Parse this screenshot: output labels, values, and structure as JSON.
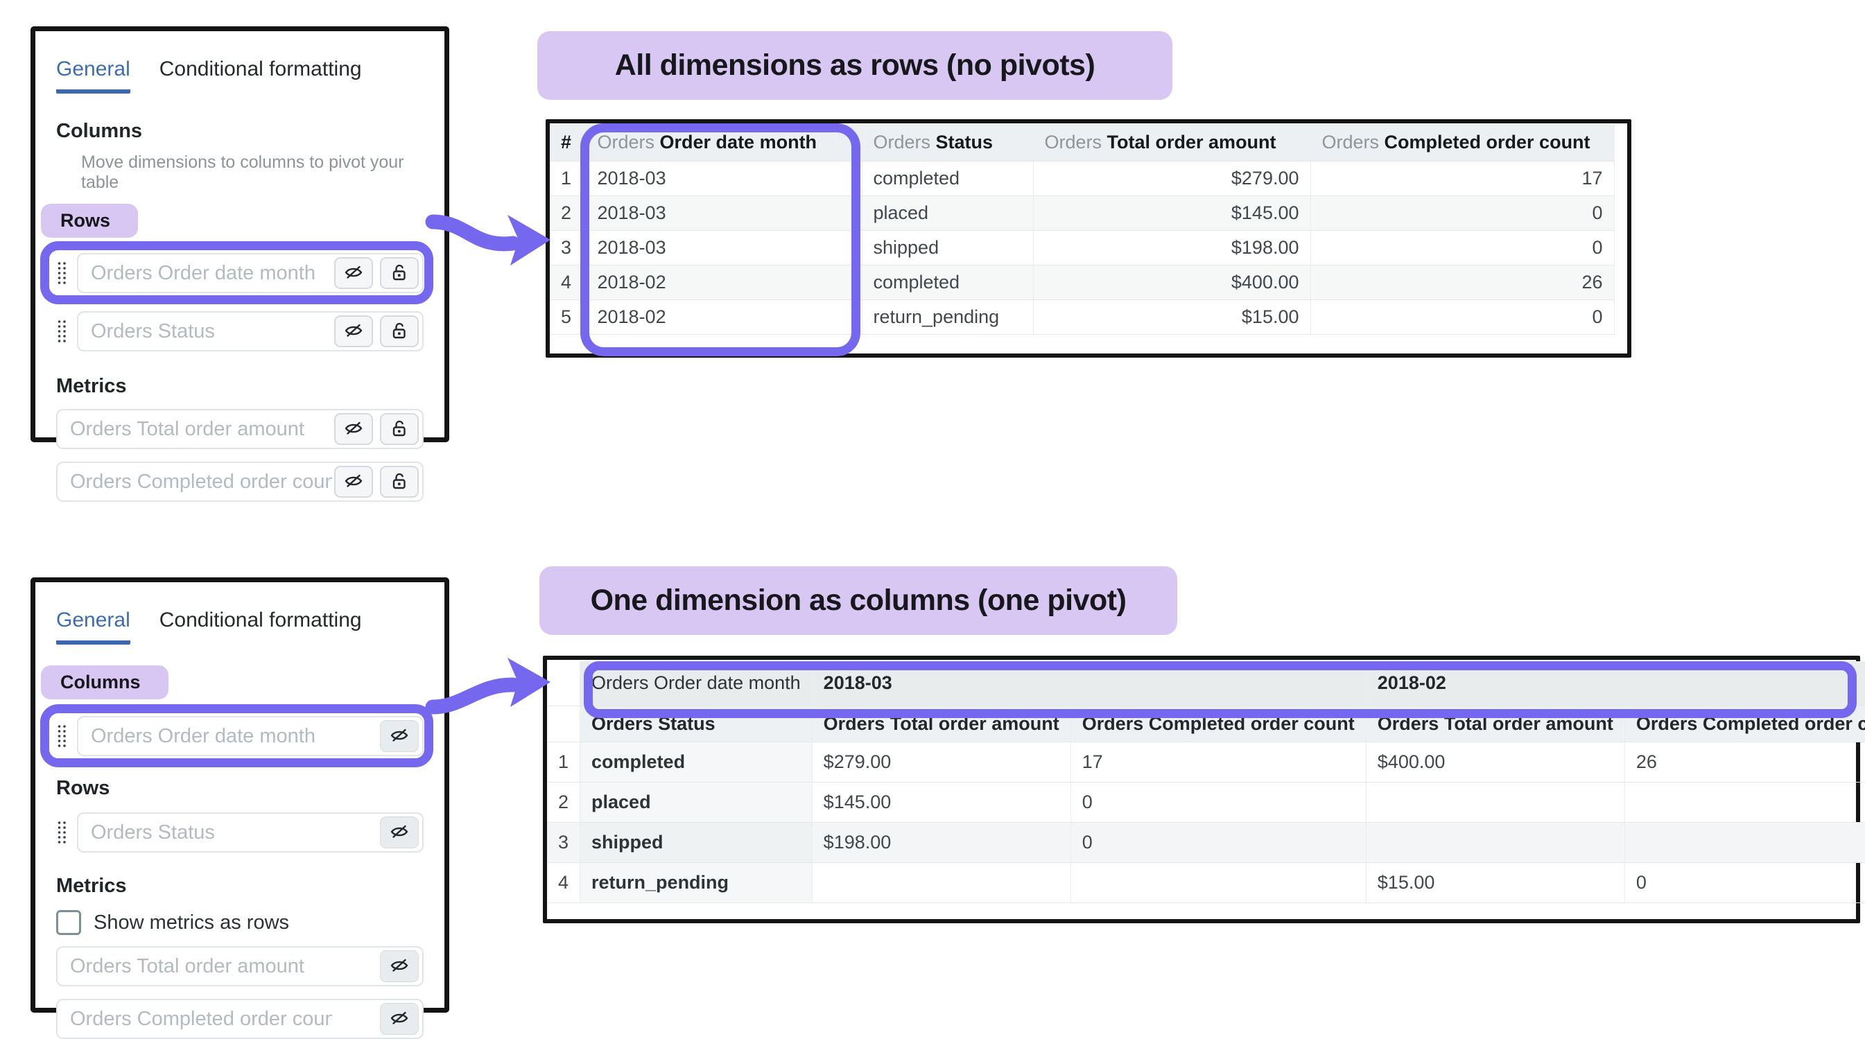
{
  "colors": {
    "accent_purple": "#7567ee",
    "lavender_badge": "#d8c7f3",
    "active_tab_blue": "#3e6cb2",
    "frame_black": "#141414",
    "header_gray": "#edf0f2"
  },
  "panel_top": {
    "tabs": [
      {
        "label": "General",
        "active": true
      },
      {
        "label": "Conditional formatting",
        "active": false
      }
    ],
    "columns_heading": "Columns",
    "columns_help": "Move dimensions to columns to pivot your table",
    "rows_badge": "Rows",
    "row_fields": [
      {
        "placeholder": "Orders Order date month",
        "highlighted": true
      },
      {
        "placeholder": "Orders Status",
        "highlighted": false
      }
    ],
    "metrics_heading": "Metrics",
    "metric_fields": [
      {
        "placeholder": "Orders Total order amount"
      },
      {
        "placeholder": "Orders Completed order count"
      }
    ]
  },
  "panel_bottom": {
    "tabs": [
      {
        "label": "General",
        "active": true
      },
      {
        "label": "Conditional formatting",
        "active": false
      }
    ],
    "columns_badge": "Columns",
    "column_fields": [
      {
        "placeholder": "Orders Order date month",
        "highlighted": true
      }
    ],
    "rows_heading": "Rows",
    "row_fields": [
      {
        "placeholder": "Orders Status",
        "highlighted": false
      }
    ],
    "metrics_heading": "Metrics",
    "show_metrics_checkbox_label": "Show metrics as rows",
    "show_metrics_checked": false,
    "metric_fields": [
      {
        "placeholder": "Orders Total order amount"
      },
      {
        "placeholder": "Orders Completed order count"
      }
    ]
  },
  "section_top": {
    "title": "All dimensions as rows (no pivots)",
    "table": {
      "row_number_header": "#",
      "columns": [
        {
          "prefix": "Orders",
          "name": "Order date month",
          "align": "left"
        },
        {
          "prefix": "Orders",
          "name": "Status",
          "align": "left"
        },
        {
          "prefix": "Orders",
          "name": "Total order amount",
          "align": "right"
        },
        {
          "prefix": "Orders",
          "name": "Completed order count",
          "align": "right"
        }
      ],
      "rows": [
        {
          "n": "1",
          "cells": [
            "2018-03",
            "completed",
            "$279.00",
            "17"
          ]
        },
        {
          "n": "2",
          "cells": [
            "2018-03",
            "placed",
            "$145.00",
            "0"
          ]
        },
        {
          "n": "3",
          "cells": [
            "2018-03",
            "shipped",
            "$198.00",
            "0"
          ]
        },
        {
          "n": "4",
          "cells": [
            "2018-02",
            "completed",
            "$400.00",
            "26"
          ]
        },
        {
          "n": "5",
          "cells": [
            "2018-02",
            "return_pending",
            "$15.00",
            "0"
          ]
        }
      ]
    }
  },
  "section_bottom": {
    "title": "One dimension as columns (one pivot)",
    "table": {
      "pivot_label": "Orders Order date month",
      "pivot_groups": [
        {
          "value": "2018-03",
          "span": 2
        },
        {
          "value": "2018-02",
          "span": 2
        }
      ],
      "columns": [
        "Orders Status",
        "Orders Total order amount",
        "Orders Completed order count",
        "Orders Total order amount",
        "Orders Completed order count"
      ],
      "rows": [
        {
          "n": "1",
          "cells": [
            "completed",
            "$279.00",
            "17",
            "$400.00",
            "26"
          ]
        },
        {
          "n": "2",
          "cells": [
            "placed",
            "$145.00",
            "0",
            "",
            ""
          ]
        },
        {
          "n": "3",
          "cells": [
            "shipped",
            "$198.00",
            "0",
            "",
            ""
          ]
        },
        {
          "n": "4",
          "cells": [
            "return_pending",
            "",
            "",
            "$15.00",
            "0"
          ]
        }
      ]
    }
  }
}
